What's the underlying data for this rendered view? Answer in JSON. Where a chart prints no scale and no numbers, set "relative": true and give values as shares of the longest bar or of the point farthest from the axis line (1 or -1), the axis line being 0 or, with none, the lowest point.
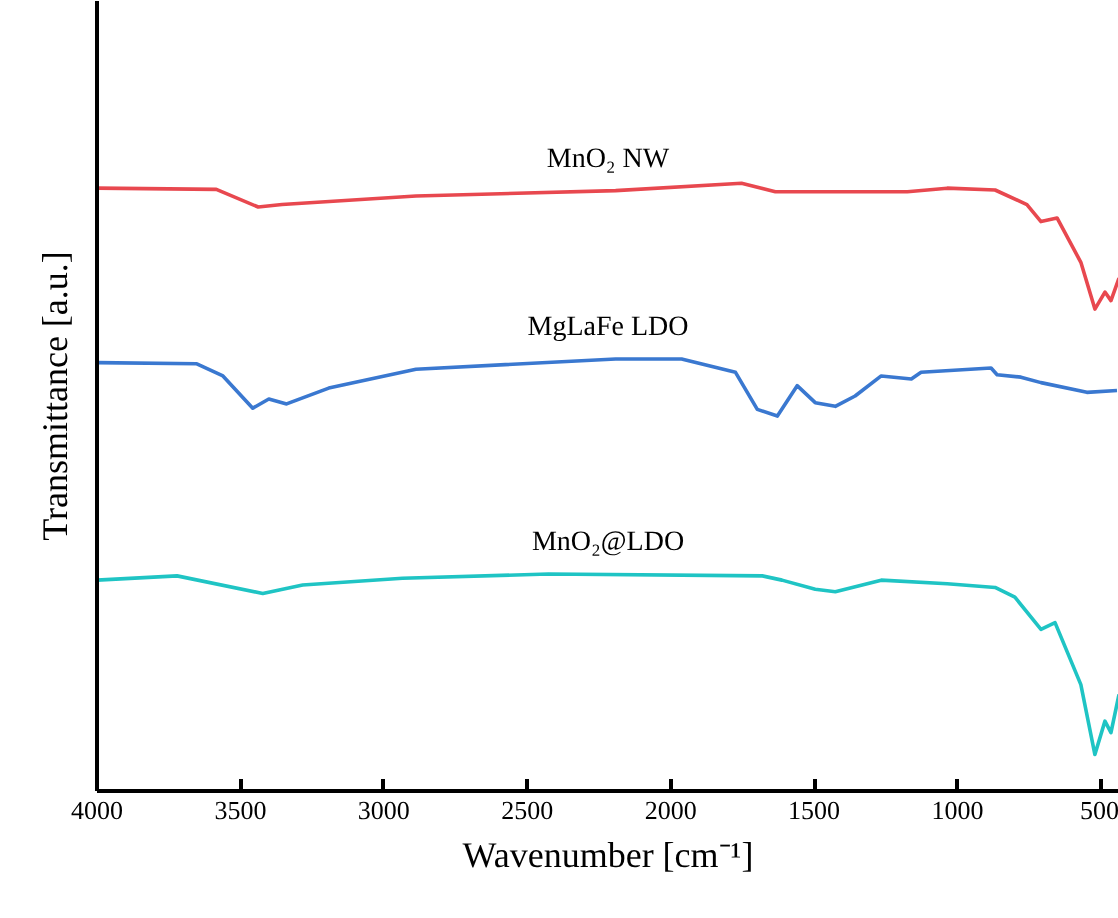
{
  "chart_data": {
    "type": "line",
    "relative": true,
    "xlabel": "Wavenumber [cm⁻¹]",
    "ylabel": "Transmittance [a.u.]",
    "xlim": [
      4000,
      437
    ],
    "xticks": [
      4000,
      3500,
      3000,
      2500,
      2000,
      1500,
      1000,
      500
    ],
    "grid": false,
    "tick_labels": "x",
    "series": [
      {
        "name": "MnO₂ NW",
        "color": "#e8484f",
        "x": [
          4000,
          3584,
          3438,
          3355,
          2888,
          2192,
          1753,
          1635,
          1175,
          1036,
          869,
          758,
          709,
          653,
          570,
          521,
          486,
          465,
          437
        ],
        "values": [
          0.992,
          0.99,
          0.961,
          0.965,
          0.979,
          0.988,
          1.0,
          0.986,
          0.986,
          0.992,
          0.989,
          0.965,
          0.937,
          0.943,
          0.87,
          0.793,
          0.821,
          0.807,
          0.844
        ]
      },
      {
        "name": "MgLaFe LDO",
        "color": "#3a78d0",
        "x": [
          4000,
          3652,
          3561,
          3457,
          3401,
          3339,
          3192,
          2888,
          2192,
          1962,
          1774,
          1698,
          1628,
          1559,
          1496,
          1426,
          1357,
          1266,
          1161,
          1127,
          883,
          862,
          779,
          709,
          549,
          444
        ],
        "values": [
          0.705,
          0.703,
          0.683,
          0.63,
          0.645,
          0.637,
          0.663,
          0.694,
          0.711,
          0.711,
          0.689,
          0.628,
          0.617,
          0.667,
          0.639,
          0.633,
          0.65,
          0.683,
          0.678,
          0.689,
          0.696,
          0.685,
          0.681,
          0.672,
          0.656,
          0.659
        ]
      },
      {
        "name": "MnO₂@LDO",
        "color": "#1fc4c4",
        "x": [
          4000,
          3721,
          3422,
          3283,
          2935,
          2426,
          1681,
          1612,
          1496,
          1426,
          1266,
          1036,
          869,
          800,
          709,
          660,
          570,
          521,
          486,
          465,
          437
        ],
        "values": [
          0.347,
          0.354,
          0.325,
          0.339,
          0.35,
          0.357,
          0.354,
          0.347,
          0.332,
          0.328,
          0.347,
          0.341,
          0.335,
          0.319,
          0.266,
          0.277,
          0.175,
          0.06,
          0.115,
          0.096,
          0.159
        ]
      }
    ]
  }
}
